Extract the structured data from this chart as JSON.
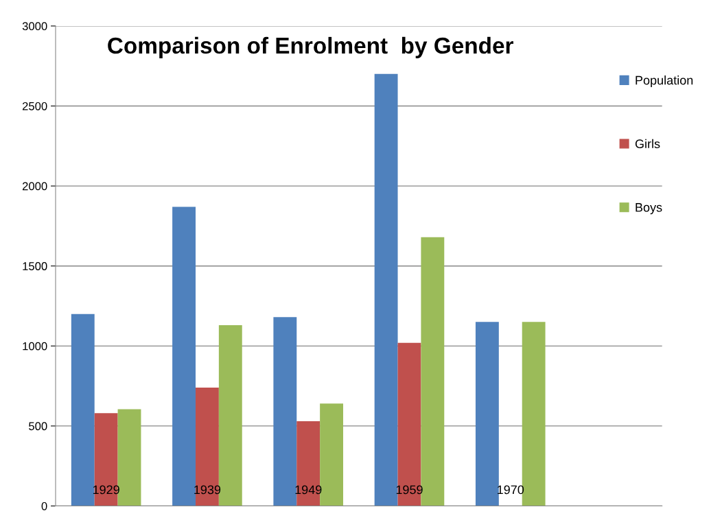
{
  "chart_data": {
    "type": "bar",
    "title": "Comparison of Enrolment  by Gender",
    "categories": [
      "1929",
      "1939",
      "1949",
      "1959",
      "1970",
      null
    ],
    "series": [
      {
        "name": "Population",
        "color": "#4f81bd",
        "values": [
          1200,
          1870,
          1180,
          2700,
          1150,
          null
        ]
      },
      {
        "name": "Girls",
        "color": "#c0504d",
        "values": [
          580,
          740,
          530,
          1020,
          null,
          null
        ]
      },
      {
        "name": "Boys",
        "color": "#9bbb59",
        "values": [
          605,
          1130,
          640,
          1680,
          1150,
          null
        ]
      }
    ],
    "ylim": [
      0,
      3000
    ],
    "yticks": [
      0,
      500,
      1000,
      1500,
      2000,
      2500,
      3000
    ],
    "grid": "y",
    "legend": "top right"
  }
}
